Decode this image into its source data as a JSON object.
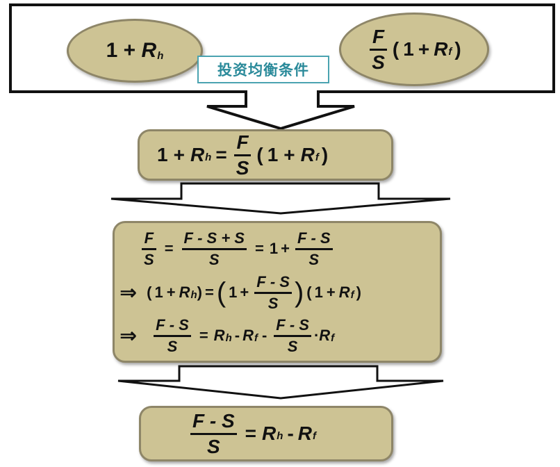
{
  "top": {
    "label": "投资均衡条件",
    "left_pill": {
      "one": "1",
      "plus": "+",
      "R": "R",
      "sub_h": "h"
    },
    "right_pill": {
      "F": "F",
      "S": "S",
      "open": "(",
      "one": "1",
      "plus": "+",
      "R": "R",
      "sub_f": "f",
      "close": ")"
    }
  },
  "box1": {
    "one": "1",
    "plus": "+",
    "R": "R",
    "sub_h": "h",
    "eq": "=",
    "F": "F",
    "S": "S",
    "open": "(",
    "one2": "1",
    "plus2": "+",
    "R2": "R",
    "sub_f": "f",
    "close": ")"
  },
  "box2": {
    "line1": {
      "F": "F",
      "S": "S",
      "eq": "=",
      "num": "F - S + S",
      "den": "S",
      "eq2": "=",
      "one": "1",
      "plus": "+",
      "num2": "F - S",
      "den2": "S"
    },
    "line2": {
      "arrow": "⇒",
      "open": "(",
      "one": "1",
      "plus": "+",
      "R": "R",
      "sub_h": "h",
      "close": ")",
      "eq": "=",
      "bopen": "(",
      "one2": "1",
      "plus2": "+",
      "num": "F - S",
      "den": "S",
      "bclose": ")",
      "open3": "(",
      "one3": "1",
      "plus3": "+",
      "R3": "R",
      "sub_f": "f",
      "close3": ")"
    },
    "line3": {
      "arrow": "⇒",
      "num": "F - S",
      "den": "S",
      "eq": "=",
      "R": "R",
      "sub_h": "h",
      "minus": "-",
      "R2": "R",
      "sub_f": "f",
      "minus2": "-",
      "num2": "F - S",
      "den2": "S",
      "dot": "·",
      "R3": "R",
      "sub_f2": "f"
    }
  },
  "box3": {
    "num": "F - S",
    "den": "S",
    "eq": "=",
    "R": "R",
    "sub_h": "h",
    "minus": "-",
    "R2": "R",
    "sub_f": "f"
  },
  "colors": {
    "fill": "#cdc394",
    "border": "#8e8668",
    "label_border": "#4aa3b0"
  }
}
